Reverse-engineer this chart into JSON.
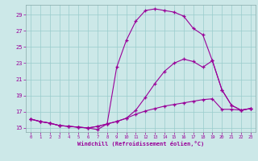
{
  "xlabel": "Windchill (Refroidissement éolien,°C)",
  "bg_color": "#cce8e8",
  "line_color": "#990099",
  "grid_color": "#99cccc",
  "xlim": [
    -0.5,
    23.5
  ],
  "ylim": [
    14.5,
    30.2
  ],
  "xticks": [
    0,
    1,
    2,
    3,
    4,
    5,
    6,
    7,
    8,
    9,
    10,
    11,
    12,
    13,
    14,
    15,
    16,
    17,
    18,
    19,
    20,
    21,
    22,
    23
  ],
  "yticks": [
    15,
    17,
    19,
    21,
    23,
    25,
    27,
    29
  ],
  "line1_x": [
    0,
    1,
    2,
    3,
    4,
    5,
    6,
    7,
    8,
    9,
    10,
    11,
    12,
    13,
    14,
    15,
    16,
    17,
    18,
    19,
    20,
    21,
    22,
    23
  ],
  "line1_y": [
    16.1,
    15.8,
    15.6,
    15.3,
    15.2,
    15.1,
    15.0,
    15.2,
    15.5,
    15.8,
    16.2,
    16.7,
    17.1,
    17.4,
    17.7,
    17.9,
    18.1,
    18.3,
    18.5,
    18.6,
    17.3,
    17.3,
    17.2,
    17.4
  ],
  "line2_x": [
    0,
    1,
    2,
    3,
    4,
    5,
    6,
    7,
    8,
    9,
    10,
    11,
    12,
    13,
    14,
    15,
    16,
    17,
    18,
    19,
    20,
    21,
    22,
    23
  ],
  "line2_y": [
    16.1,
    15.8,
    15.6,
    15.3,
    15.2,
    15.1,
    15.0,
    15.2,
    15.5,
    15.8,
    16.2,
    17.2,
    18.8,
    20.5,
    22.0,
    23.0,
    23.5,
    23.2,
    22.5,
    23.3,
    19.7,
    17.8,
    17.2,
    17.4
  ],
  "line3_x": [
    0,
    1,
    2,
    3,
    4,
    5,
    6,
    7,
    8,
    9,
    10,
    11,
    12,
    13,
    14,
    15,
    16,
    17,
    18,
    19,
    20,
    21,
    22,
    23
  ],
  "line3_y": [
    16.1,
    15.8,
    15.6,
    15.3,
    15.2,
    15.1,
    15.0,
    14.8,
    15.5,
    22.5,
    25.8,
    28.2,
    29.5,
    29.7,
    29.5,
    29.3,
    28.8,
    27.3,
    26.5,
    23.3,
    19.7,
    17.8,
    17.2,
    17.4
  ]
}
